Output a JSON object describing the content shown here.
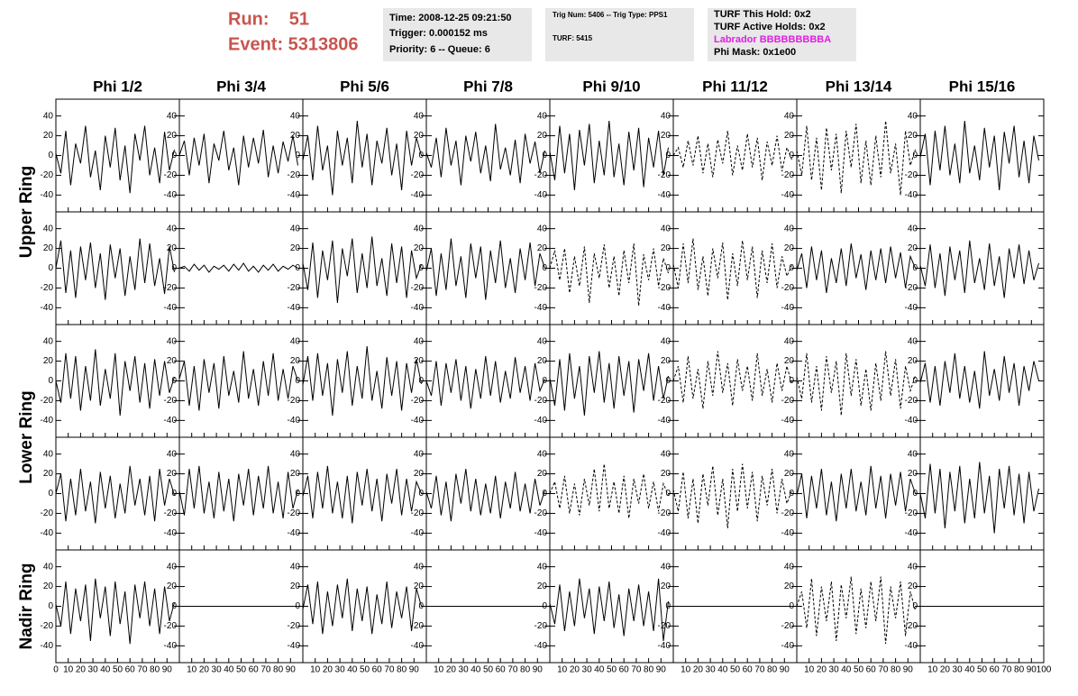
{
  "header": {
    "run": "Run:    51",
    "event": "Event: 5313806",
    "time_box": [
      "Time: 2008-12-25 09:21:50",
      "Trigger: 0.000152 ms",
      "Priority: 6 -- Queue: 6"
    ],
    "trig_box": [
      "Trig Num: 5406 -- Trig Type: PPS1",
      "TURF: 5415"
    ],
    "turf_box": [
      "TURF This Hold: 0x2",
      "TURF Active Holds: 0x2",
      "Labrador BBBBBBBBBA",
      "Phi Mask: 0x1e00"
    ]
  },
  "chart_data": {
    "type": "line",
    "columns": [
      "Phi 1/2",
      "Phi 3/4",
      "Phi 5/6",
      "Phi 7/8",
      "Phi 9/10",
      "Phi 11/12",
      "Phi 13/14",
      "Phi 15/16"
    ],
    "row_labels": [
      "Upper Ring",
      "Lower Ring",
      "Nadir Ring"
    ],
    "ylim": [
      -57,
      57
    ],
    "yticks": [
      -40,
      -20,
      0,
      20,
      40
    ],
    "xlim": [
      0,
      100
    ],
    "xticks": [
      0,
      10,
      20,
      30,
      40,
      50,
      60,
      70,
      80,
      90,
      100
    ],
    "x": [
      0,
      4,
      8,
      12,
      16,
      20,
      24,
      28,
      32,
      36,
      40,
      44,
      48,
      52,
      56,
      60,
      64,
      68,
      72,
      76,
      80,
      84,
      88,
      92,
      96
    ],
    "panels": [
      [
        {
          "values": [
            2,
            -18,
            25,
            -30,
            12,
            -8,
            30,
            -22,
            5,
            -35,
            20,
            -12,
            28,
            -25,
            10,
            -38,
            22,
            -5,
            30,
            -20,
            8,
            -28,
            24,
            -15,
            6
          ]
        },
        {
          "values": [
            0,
            15,
            -20,
            18,
            -10,
            22,
            -28,
            12,
            -5,
            25,
            -15,
            8,
            -30,
            20,
            -12,
            18,
            -8,
            26,
            -22,
            10,
            -18,
            14,
            -6,
            20,
            -10
          ]
        },
        {
          "values": [
            -5,
            20,
            -25,
            30,
            -15,
            10,
            -40,
            25,
            -10,
            18,
            -28,
            35,
            -12,
            22,
            -30,
            15,
            -8,
            28,
            -20,
            12,
            -35,
            25,
            -10,
            18,
            0
          ]
        },
        {
          "values": [
            3,
            -12,
            18,
            -22,
            28,
            -10,
            15,
            -30,
            20,
            -6,
            24,
            -18,
            10,
            -26,
            32,
            -14,
            8,
            -20,
            16,
            -28,
            22,
            -8,
            14,
            -18,
            5
          ]
        },
        {
          "values": [
            4,
            -25,
            30,
            -18,
            22,
            -35,
            26,
            -10,
            32,
            -28,
            15,
            -20,
            35,
            -22,
            12,
            -30,
            24,
            -15,
            28,
            -32,
            18,
            -12,
            25,
            -20,
            8
          ]
        },
        {
          "values": [
            0,
            8,
            -12,
            15,
            -10,
            20,
            -18,
            12,
            -22,
            16,
            -8,
            25,
            -20,
            10,
            -15,
            22,
            -12,
            18,
            -25,
            14,
            -10,
            20,
            -16,
            8,
            -4
          ],
          "dashed": true
        },
        {
          "values": [
            5,
            -20,
            30,
            -25,
            18,
            -35,
            28,
            -15,
            22,
            -38,
            25,
            -12,
            32,
            -28,
            15,
            -30,
            20,
            -22,
            35,
            -18,
            12,
            -40,
            25,
            -10,
            6
          ],
          "dashed": true
        },
        {
          "values": [
            -2,
            22,
            -30,
            25,
            -15,
            30,
            -20,
            12,
            -28,
            35,
            -18,
            10,
            -25,
            28,
            -12,
            20,
            -35,
            24,
            -8,
            30,
            -22,
            15,
            -28,
            20,
            -5
          ]
        }
      ],
      [
        {
          "values": [
            0,
            28,
            -25,
            18,
            -30,
            22,
            -12,
            26,
            -20,
            15,
            -32,
            24,
            -10,
            20,
            -28,
            12,
            -22,
            30,
            -15,
            25,
            -18,
            10,
            -26,
            22,
            -4
          ]
        },
        {
          "values": [
            0,
            2,
            -3,
            4,
            -2,
            3,
            -4,
            2,
            -1,
            3,
            -3,
            4,
            -2,
            5,
            -3,
            2,
            -4,
            3,
            -2,
            4,
            -3,
            2,
            -1,
            3,
            0
          ]
        },
        {
          "values": [
            5,
            -22,
            26,
            -30,
            18,
            -12,
            28,
            -35,
            20,
            -8,
            30,
            -25,
            15,
            -20,
            32,
            -18,
            10,
            -28,
            25,
            -15,
            22,
            -30,
            18,
            -10,
            4
          ]
        },
        {
          "values": [
            -3,
            20,
            -28,
            15,
            -22,
            30,
            -18,
            12,
            -30,
            25,
            -10,
            22,
            -32,
            18,
            -15,
            28,
            -20,
            10,
            -25,
            20,
            -12,
            26,
            -18,
            15,
            0
          ]
        },
        {
          "values": [
            0,
            18,
            -12,
            20,
            -25,
            12,
            -18,
            22,
            -35,
            15,
            -10,
            24,
            -20,
            12,
            -28,
            18,
            -15,
            25,
            -38,
            14,
            -12,
            20,
            -18,
            10,
            -5
          ],
          "dashed": true
        },
        {
          "values": [
            4,
            -20,
            25,
            -15,
            30,
            -22,
            12,
            -28,
            20,
            -10,
            26,
            -32,
            15,
            -18,
            28,
            -12,
            22,
            -30,
            18,
            -15,
            25,
            -20,
            12,
            -8,
            3
          ],
          "dashed": true
        },
        {
          "values": [
            -2,
            15,
            -20,
            22,
            -12,
            18,
            -25,
            10,
            -15,
            20,
            -18,
            25,
            -10,
            14,
            -22,
            18,
            -12,
            20,
            -15,
            22,
            -10,
            16,
            -20,
            12,
            0
          ]
        },
        {
          "values": [
            3,
            -18,
            24,
            -20,
            15,
            -28,
            22,
            -12,
            18,
            -25,
            28,
            -15,
            10,
            -22,
            25,
            -18,
            12,
            -30,
            20,
            -10,
            24,
            -16,
            18,
            -12,
            5
          ]
        }
      ],
      [
        {
          "values": [
            0,
            -22,
            28,
            -18,
            25,
            -30,
            15,
            -20,
            32,
            -25,
            12,
            -18,
            28,
            -35,
            20,
            -10,
            25,
            -22,
            18,
            -28,
            22,
            -15,
            20,
            -12,
            4
          ]
        },
        {
          "values": [
            2,
            20,
            -25,
            15,
            -30,
            22,
            -12,
            18,
            -28,
            25,
            -15,
            10,
            -22,
            30,
            -18,
            12,
            -25,
            20,
            -15,
            28,
            -20,
            12,
            -18,
            15,
            0
          ]
        },
        {
          "values": [
            -4,
            25,
            -20,
            28,
            -15,
            18,
            -35,
            22,
            -12,
            30,
            -25,
            15,
            -18,
            35,
            -20,
            10,
            -28,
            24,
            -15,
            20,
            -30,
            18,
            -12,
            22,
            -3
          ]
        },
        {
          "values": [
            0,
            -15,
            20,
            -25,
            18,
            -12,
            22,
            -20,
            15,
            -28,
            12,
            -18,
            25,
            -15,
            20,
            -22,
            10,
            -18,
            24,
            -12,
            15,
            -20,
            18,
            -10,
            2
          ]
        },
        {
          "values": [
            3,
            -25,
            22,
            -30,
            28,
            -18,
            15,
            -35,
            25,
            -12,
            30,
            -22,
            18,
            -28,
            25,
            -15,
            20,
            -32,
            22,
            -10,
            28,
            -20,
            15,
            -18,
            5
          ]
        },
        {
          "values": [
            0,
            15,
            -22,
            25,
            -18,
            12,
            -28,
            20,
            -15,
            30,
            -12,
            18,
            -25,
            22,
            -10,
            15,
            -20,
            28,
            -15,
            12,
            -22,
            18,
            -10,
            15,
            -3
          ],
          "dashed": true
        },
        {
          "values": [
            4,
            -18,
            28,
            -22,
            15,
            -30,
            25,
            -12,
            20,
            -35,
            28,
            -15,
            22,
            -25,
            12,
            -30,
            18,
            -20,
            30,
            -15,
            22,
            -28,
            15,
            -10,
            5
          ],
          "dashed": true
        },
        {
          "values": [
            -2,
            18,
            -22,
            15,
            -25,
            20,
            -12,
            28,
            -18,
            15,
            -22,
            10,
            -28,
            30,
            -15,
            12,
            -20,
            25,
            -12,
            18,
            -25,
            15,
            -10,
            20,
            0
          ]
        }
      ],
      [
        {
          "values": [
            0,
            20,
            -28,
            15,
            -22,
            25,
            -18,
            12,
            -30,
            22,
            -15,
            18,
            -25,
            10,
            -20,
            28,
            -12,
            15,
            -22,
            18,
            -28,
            25,
            -12,
            15,
            -2
          ]
        },
        {
          "values": [
            3,
            -22,
            25,
            -15,
            28,
            -20,
            12,
            -25,
            22,
            -18,
            15,
            -28,
            20,
            -12,
            25,
            -22,
            18,
            -15,
            28,
            -20,
            12,
            -25,
            22,
            -15,
            4
          ]
        },
        {
          "values": [
            -3,
            18,
            -25,
            22,
            -15,
            28,
            -20,
            12,
            -25,
            18,
            -30,
            22,
            -12,
            25,
            -18,
            15,
            -28,
            20,
            -10,
            25,
            -22,
            15,
            -18,
            12,
            0
          ]
        },
        {
          "values": [
            2,
            -15,
            18,
            -22,
            12,
            -28,
            20,
            -10,
            25,
            -18,
            15,
            -22,
            10,
            -20,
            18,
            -25,
            12,
            -15,
            22,
            -18,
            10,
            -20,
            15,
            -12,
            3
          ]
        },
        {
          "values": [
            0,
            12,
            -15,
            18,
            -20,
            10,
            -22,
            15,
            -12,
            25,
            -18,
            30,
            -15,
            12,
            -20,
            18,
            -25,
            15,
            -10,
            20,
            -15,
            12,
            -18,
            10,
            -2
          ],
          "dashed": true
        },
        {
          "values": [
            4,
            -18,
            22,
            -25,
            15,
            -30,
            20,
            -12,
            28,
            -22,
            15,
            -35,
            25,
            -18,
            30,
            -15,
            22,
            -28,
            18,
            -12,
            25,
            -20,
            15,
            -10,
            3
          ],
          "dashed": true
        },
        {
          "values": [
            -2,
            20,
            -25,
            18,
            -15,
            25,
            -22,
            12,
            -28,
            20,
            -15,
            25,
            -18,
            12,
            -22,
            28,
            -15,
            18,
            -25,
            20,
            -12,
            22,
            -18,
            15,
            0
          ]
        },
        {
          "values": [
            0,
            -25,
            30,
            -20,
            25,
            -35,
            22,
            -18,
            28,
            -30,
            15,
            -25,
            32,
            -20,
            18,
            -40,
            25,
            -15,
            28,
            -22,
            20,
            -30,
            22,
            -18,
            5
          ]
        }
      ],
      [
        {
          "values": [
            2,
            -20,
            25,
            -28,
            18,
            -15,
            22,
            -35,
            28,
            -12,
            20,
            -30,
            25,
            -18,
            15,
            -38,
            22,
            -12,
            25,
            -20,
            18,
            -28,
            20,
            -15,
            4
          ]
        },
        {
          "values": [
            0,
            0,
            0,
            0,
            0,
            0,
            0,
            0,
            0,
            0,
            0,
            0,
            0,
            0,
            0,
            0,
            0,
            0,
            0,
            0,
            0,
            0,
            0,
            0,
            0
          ]
        },
        {
          "values": [
            -3,
            22,
            -18,
            25,
            -28,
            15,
            -20,
            22,
            -12,
            28,
            -25,
            18,
            -15,
            20,
            -28,
            12,
            -18,
            25,
            -22,
            15,
            -12,
            20,
            -25,
            18,
            0
          ]
        },
        {
          "values": [
            0,
            0,
            0,
            0,
            0,
            0,
            0,
            0,
            0,
            0,
            0,
            0,
            0,
            0,
            0,
            0,
            0,
            0,
            0,
            0,
            0,
            0,
            0,
            0,
            0
          ]
        },
        {
          "values": [
            3,
            -18,
            22,
            -25,
            15,
            -20,
            28,
            -12,
            18,
            -28,
            20,
            -15,
            25,
            -22,
            12,
            -30,
            18,
            -15,
            22,
            -20,
            15,
            -25,
            28,
            -35,
            5
          ]
        },
        {
          "values": [
            0,
            0,
            0,
            0,
            0,
            0,
            0,
            0,
            0,
            0,
            0,
            0,
            0,
            0,
            0,
            0,
            0,
            0,
            0,
            0,
            0,
            0,
            0,
            0,
            0
          ]
        },
        {
          "values": [
            0,
            15,
            -22,
            28,
            -30,
            20,
            -15,
            25,
            -35,
            22,
            -12,
            30,
            -28,
            18,
            -22,
            25,
            -15,
            30,
            -38,
            20,
            -12,
            25,
            -30,
            15,
            -4
          ],
          "dashed": true
        },
        {
          "values": [
            0,
            0,
            0,
            0,
            0,
            0,
            0,
            0,
            0,
            0,
            0,
            0,
            0,
            0,
            0,
            0,
            0,
            0,
            0,
            0,
            0,
            0,
            0,
            0,
            0
          ]
        }
      ]
    ]
  }
}
